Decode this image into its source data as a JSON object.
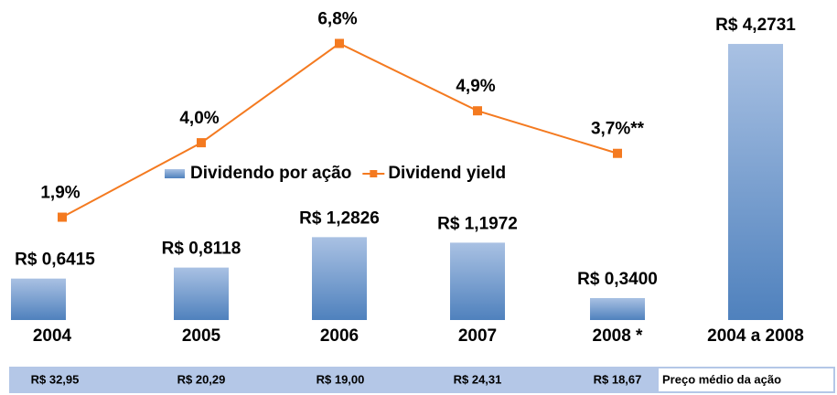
{
  "chart_data": {
    "type": "bar_line",
    "categories": [
      "2004",
      "2005",
      "2006",
      "2007",
      "2008 *",
      "2004 a 2008"
    ],
    "series": [
      {
        "name": "Dividendo por ação",
        "type": "bar",
        "color": "#4f81bd",
        "values": [
          0.6415,
          0.8118,
          1.2826,
          1.1972,
          0.34,
          4.2731
        ],
        "value_labels": [
          "R$ 0,6415",
          "R$ 0,8118",
          "R$ 1,2826",
          "R$ 1,1972",
          "R$ 0,3400",
          "R$ 4,2731"
        ]
      },
      {
        "name": "Dividend yield",
        "type": "line",
        "color": "#f47a20",
        "axis": "y2",
        "values": [
          1.9,
          4.0,
          6.8,
          4.9,
          3.7,
          null
        ],
        "value_labels": [
          "1,9%",
          "4,0%",
          "6,8%",
          "4,9%",
          "3,7%**",
          null
        ]
      }
    ],
    "ylim": [
      0,
      4.5
    ],
    "y2lim": [
      -1,
      7.2
    ],
    "legend": "center"
  },
  "price_table": {
    "cells": [
      "R$ 32,95",
      "R$ 20,29",
      "R$ 19,00",
      "R$ 24,31",
      "R$ 18,67"
    ],
    "label": "Preço médio da ação"
  }
}
